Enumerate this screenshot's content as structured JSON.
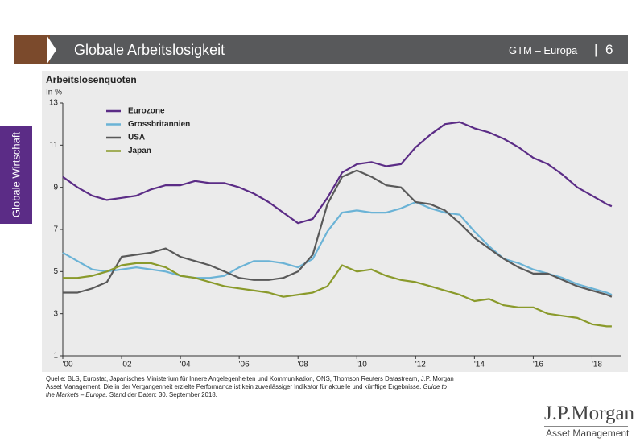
{
  "header": {
    "title": "Globale Arbeitslosigkeit",
    "section": "GTM – Europa",
    "page": "6"
  },
  "sidebar": "Globale Wirtschaft",
  "chart_data": {
    "type": "line",
    "title": "Arbeitslosenquoten",
    "ylabel": "In %",
    "x": [
      2000,
      2000.5,
      2001,
      2001.5,
      2002,
      2002.5,
      2003,
      2003.5,
      2004,
      2004.5,
      2005,
      2005.5,
      2006,
      2006.5,
      2007,
      2007.5,
      2008,
      2008.5,
      2009,
      2009.5,
      2010,
      2010.5,
      2011,
      2011.5,
      2012,
      2012.5,
      2013,
      2013.5,
      2014,
      2014.5,
      2015,
      2015.5,
      2016,
      2016.5,
      2017,
      2017.5,
      2018,
      2018.5,
      2018.67
    ],
    "series": [
      {
        "name": "Eurozone",
        "color": "#5b2c86",
        "values": [
          9.5,
          9.0,
          8.6,
          8.4,
          8.5,
          8.6,
          8.9,
          9.1,
          9.1,
          9.3,
          9.2,
          9.2,
          9.0,
          8.7,
          8.3,
          7.8,
          7.3,
          7.5,
          8.5,
          9.7,
          10.1,
          10.2,
          10.0,
          10.1,
          10.9,
          11.5,
          12.0,
          12.1,
          11.8,
          11.6,
          11.3,
          10.9,
          10.4,
          10.1,
          9.6,
          9.0,
          8.6,
          8.2,
          8.1
        ]
      },
      {
        "name": "Grossbritannien",
        "color": "#6bb3d6",
        "values": [
          5.9,
          5.5,
          5.1,
          5.0,
          5.1,
          5.2,
          5.1,
          5.0,
          4.8,
          4.7,
          4.7,
          4.8,
          5.2,
          5.5,
          5.5,
          5.4,
          5.2,
          5.6,
          6.9,
          7.8,
          7.9,
          7.8,
          7.8,
          8.0,
          8.3,
          8.0,
          7.8,
          7.7,
          6.9,
          6.2,
          5.6,
          5.4,
          5.1,
          4.9,
          4.7,
          4.4,
          4.2,
          4.0,
          3.9
        ]
      },
      {
        "name": "USA",
        "color": "#595959",
        "values": [
          4.0,
          4.0,
          4.2,
          4.5,
          5.7,
          5.8,
          5.9,
          6.1,
          5.7,
          5.5,
          5.3,
          5.0,
          4.7,
          4.6,
          4.6,
          4.7,
          5.0,
          5.8,
          8.2,
          9.5,
          9.8,
          9.5,
          9.1,
          9.0,
          8.3,
          8.2,
          7.9,
          7.3,
          6.6,
          6.1,
          5.6,
          5.2,
          4.9,
          4.9,
          4.6,
          4.3,
          4.1,
          3.9,
          3.8
        ]
      },
      {
        "name": "Japan",
        "color": "#8a9a2b",
        "values": [
          4.7,
          4.7,
          4.8,
          5.0,
          5.3,
          5.4,
          5.4,
          5.2,
          4.8,
          4.7,
          4.5,
          4.3,
          4.2,
          4.1,
          4.0,
          3.8,
          3.9,
          4.0,
          4.3,
          5.3,
          5.0,
          5.1,
          4.8,
          4.6,
          4.5,
          4.3,
          4.1,
          3.9,
          3.6,
          3.7,
          3.4,
          3.3,
          3.3,
          3.0,
          2.9,
          2.8,
          2.5,
          2.4,
          2.4
        ]
      }
    ],
    "xlim": [
      2000,
      2019
    ],
    "ylim": [
      1,
      13
    ],
    "xticks": [
      {
        "value": 2000,
        "label": "'00"
      },
      {
        "value": 2002,
        "label": "'02"
      },
      {
        "value": 2004,
        "label": "'04"
      },
      {
        "value": 2006,
        "label": "'06"
      },
      {
        "value": 2008,
        "label": "'08"
      },
      {
        "value": 2010,
        "label": "'10"
      },
      {
        "value": 2012,
        "label": "'12"
      },
      {
        "value": 2014,
        "label": "'14"
      },
      {
        "value": 2016,
        "label": "'16"
      },
      {
        "value": 2018,
        "label": "'18"
      }
    ],
    "yticks": [
      1,
      3,
      5,
      7,
      9,
      11,
      13
    ],
    "grid": false,
    "legend": "top-left"
  },
  "footnote": {
    "text1": "Quelle: BLS, Eurostat, Japanisches Ministerium für Innere Angelegenheiten und Kommunikation, ONS, Thomson Reuters Datastream, J.P. Morgan Asset Management. Die in der Vergangenheit erzielte Performance ist kein zuverlässiger Indikator für aktuelle und künftige Ergebnisse. ",
    "italic": "Guide to the Markets – Europa.",
    "text2": " Stand der Daten: 30. September 2018."
  },
  "logo": {
    "name": "J.P.Morgan",
    "subtitle": "Asset Management"
  }
}
